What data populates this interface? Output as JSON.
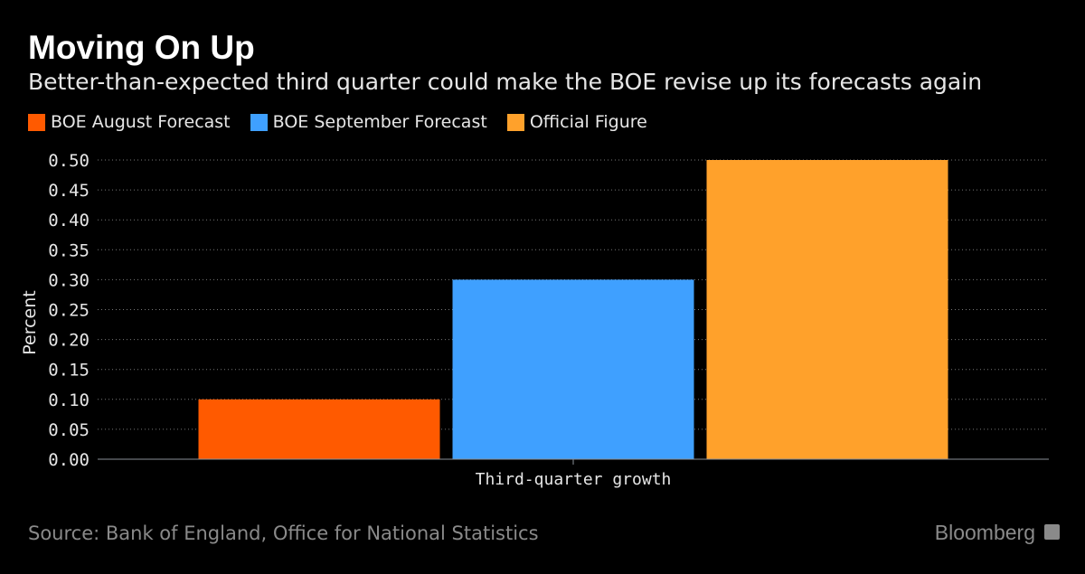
{
  "title": "Moving On Up",
  "subtitle": "Better-than-expected third quarter could make the BOE revise up its forecasts again",
  "source": "Source: Bank of England, Office for National Statistics",
  "brand": "Bloomberg",
  "chart_data": {
    "type": "bar",
    "categories": [
      "Third-quarter growth"
    ],
    "series": [
      {
        "name": "BOE August Forecast",
        "values": [
          0.1
        ],
        "color": "#ff5a00"
      },
      {
        "name": "BOE September Forecast",
        "values": [
          0.3
        ],
        "color": "#3fa0ff"
      },
      {
        "name": "Official Figure",
        "values": [
          0.5
        ],
        "color": "#ffa12b"
      }
    ],
    "xlabel": "",
    "ylabel": "Percent",
    "ylim": [
      0,
      0.5
    ],
    "yticks": [
      "0.00",
      "0.05",
      "0.10",
      "0.15",
      "0.20",
      "0.25",
      "0.30",
      "0.35",
      "0.40",
      "0.45",
      "0.50"
    ],
    "grid": true,
    "legend_position": "top-left"
  }
}
